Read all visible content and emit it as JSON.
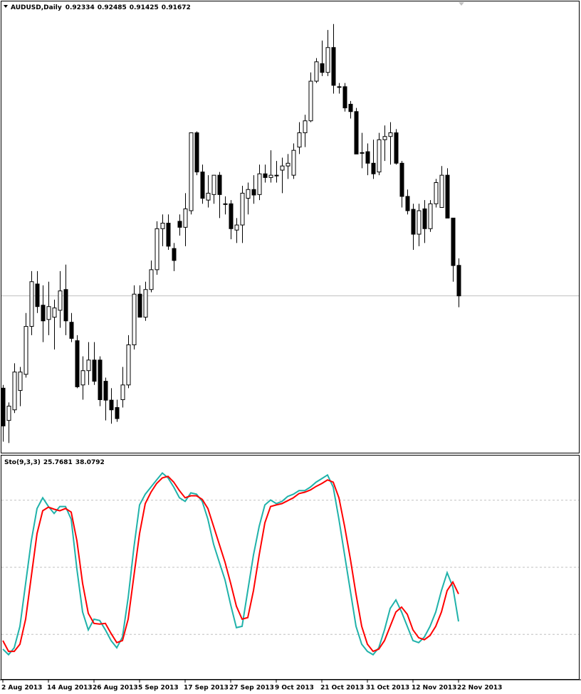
{
  "chart_data": [
    {
      "type": "candlestick",
      "title": "AUDUSD,Daily",
      "categories": [
        "2 Aug 2013",
        null,
        null,
        null,
        null,
        null,
        null,
        null,
        "14 Aug 2013",
        null,
        null,
        null,
        null,
        null,
        null,
        null,
        "26 Aug 2013",
        null,
        null,
        null,
        null,
        null,
        null,
        null,
        "5 Sep 2013",
        null,
        null,
        null,
        null,
        null,
        null,
        null,
        "17 Sep 2013",
        null,
        null,
        null,
        null,
        null,
        null,
        null,
        "27 Sep 2013",
        null,
        null,
        null,
        null,
        null,
        null,
        null,
        "9 Oct 2013",
        null,
        null,
        null,
        null,
        null,
        null,
        null,
        "21 Oct 2013",
        null,
        null,
        null,
        null,
        null,
        null,
        null,
        "31 Oct 2013",
        null,
        null,
        null,
        null,
        null,
        null,
        null,
        "12 Nov 2013",
        null,
        null,
        null,
        null,
        null,
        null,
        null,
        "22 Nov 2013"
      ],
      "open": [
        0.8967,
        0.8897,
        0.892,
        0.8962,
        0.8997,
        0.9101,
        0.9193,
        0.9147,
        0.9116,
        0.9121,
        0.9136,
        0.9181,
        0.911,
        0.907,
        0.8974,
        0.9005,
        0.9028,
        0.9028,
        0.8982,
        0.8941,
        0.8925,
        0.8942,
        0.8974,
        0.9061,
        0.9171,
        0.9121,
        0.9181,
        0.9224,
        0.9313,
        0.9325,
        0.927,
        0.9329,
        0.9316,
        0.9352,
        0.9521,
        0.9436,
        0.9375,
        0.9387,
        0.9429,
        0.9367,
        0.9367,
        0.931,
        0.9321,
        0.9379,
        0.9398,
        0.9387,
        0.9432,
        0.9424,
        0.9429,
        0.944,
        0.9449,
        0.9429,
        0.949,
        0.9521,
        0.9547,
        0.9633,
        0.9671,
        0.9652,
        0.9706,
        0.9621,
        0.9621,
        0.9583,
        0.9567,
        0.9478,
        0.948,
        0.9455,
        0.9436,
        0.9506,
        0.9513,
        0.9521,
        0.9455,
        0.9383,
        0.9355,
        0.9301,
        0.9356,
        0.9313,
        0.9367,
        0.9359,
        0.9429,
        0.9336,
        0.92334
      ],
      "high": [
        0.8974,
        0.8936,
        0.9021,
        0.9013,
        0.913,
        0.9221,
        0.9221,
        0.919,
        0.9198,
        0.9159,
        0.9221,
        0.9235,
        0.913,
        0.9082,
        0.9036,
        0.9067,
        0.9067,
        0.9036,
        0.899,
        0.8967,
        0.8942,
        0.9013,
        0.9082,
        0.919,
        0.919,
        0.9198,
        0.9244,
        0.9329,
        0.9344,
        0.9344,
        0.9282,
        0.9344,
        0.939,
        0.9521,
        0.9524,
        0.9452,
        0.9429,
        0.9429,
        0.9436,
        0.9383,
        0.9375,
        0.9336,
        0.9406,
        0.9413,
        0.9429,
        0.9452,
        0.9452,
        0.9483,
        0.946,
        0.9467,
        0.9475,
        0.9498,
        0.9544,
        0.956,
        0.9652,
        0.9683,
        0.9721,
        0.9744,
        0.9757,
        0.9629,
        0.9629,
        0.959,
        0.9575,
        0.9521,
        0.9498,
        0.9506,
        0.9521,
        0.9537,
        0.9544,
        0.9529,
        0.946,
        0.9398,
        0.9367,
        0.9367,
        0.9375,
        0.9375,
        0.9421,
        0.9449,
        0.9444,
        0.9336,
        0.92485
      ],
      "low": [
        0.8851,
        0.8848,
        0.8913,
        0.8928,
        0.899,
        0.9082,
        0.913,
        0.9067,
        0.9082,
        0.9051,
        0.9098,
        0.9082,
        0.9067,
        0.8967,
        0.8942,
        0.8974,
        0.8974,
        0.8928,
        0.8897,
        0.889,
        0.8894,
        0.8925,
        0.8967,
        0.9051,
        0.9121,
        0.9113,
        0.9175,
        0.9213,
        0.9275,
        0.9267,
        0.9221,
        0.9298,
        0.9275,
        0.9344,
        0.9429,
        0.9367,
        0.9359,
        0.9367,
        0.9336,
        0.9344,
        0.929,
        0.9282,
        0.9282,
        0.9344,
        0.9367,
        0.9375,
        0.9413,
        0.9413,
        0.9413,
        0.939,
        0.9421,
        0.9421,
        0.9475,
        0.949,
        0.9544,
        0.9629,
        0.9644,
        0.9644,
        0.9606,
        0.9606,
        0.9567,
        0.9552,
        0.9475,
        0.9444,
        0.9429,
        0.9421,
        0.9429,
        0.946,
        0.9452,
        0.9452,
        0.9359,
        0.9344,
        0.9267,
        0.9275,
        0.9282,
        0.9306,
        0.9359,
        0.9359,
        0.9336,
        0.9198,
        0.91425
      ],
      "close": [
        0.8885,
        0.8928,
        0.9002,
        0.9002,
        0.9101,
        0.9198,
        0.9144,
        0.9113,
        0.9144,
        0.9141,
        0.9178,
        0.9113,
        0.9075,
        0.897,
        0.9005,
        0.9028,
        0.8982,
        0.8942,
        0.8941,
        0.892,
        0.8901,
        0.8974,
        0.9061,
        0.9171,
        0.9121,
        0.9181,
        0.9224,
        0.9313,
        0.9325,
        0.9275,
        0.9244,
        0.9316,
        0.9356,
        0.9521,
        0.9436,
        0.9379,
        0.939,
        0.9429,
        0.9387,
        0.9367,
        0.9313,
        0.9321,
        0.939,
        0.9398,
        0.9386,
        0.9432,
        0.9424,
        0.9429,
        0.9429,
        0.9449,
        0.9455,
        0.9483,
        0.9521,
        0.9547,
        0.9633,
        0.9675,
        0.9652,
        0.9706,
        0.9624,
        0.9621,
        0.9575,
        0.9567,
        0.9475,
        0.9478,
        0.9455,
        0.9432,
        0.9506,
        0.9513,
        0.9521,
        0.9455,
        0.9383,
        0.9352,
        0.9301,
        0.9352,
        0.9313,
        0.9367,
        0.9413,
        0.9429,
        0.9336,
        0.9233,
        0.91672
      ],
      "ylim": [
        0.8827,
        0.9806
      ],
      "up_color": "#ffffff",
      "down_color": "#000000",
      "price_line_color": "#c0c0c0"
    },
    {
      "type": "line",
      "title": "Sto(9,3,3)",
      "ylim": [
        0,
        100
      ],
      "levels": [
        20,
        50,
        80
      ],
      "level_color": "#c0c0c0",
      "series": [
        {
          "color": "#20b2aa",
          "values": [
            13.4,
            10.9,
            14.0,
            23.6,
            42.8,
            61.9,
            76.3,
            81.1,
            77.2,
            74.1,
            77.2,
            77.2,
            71.5,
            49.2,
            30.0,
            22.0,
            26.8,
            26.2,
            22.0,
            17.2,
            14.0,
            18.8,
            36.4,
            58.7,
            77.9,
            82.7,
            85.9,
            89.1,
            92.2,
            90.0,
            85.9,
            81.1,
            79.5,
            83.3,
            82.7,
            79.5,
            71.5,
            60.3,
            52.3,
            44.4,
            33.2,
            23.0,
            23.6,
            39.6,
            55.5,
            68.3,
            77.9,
            80.1,
            78.5,
            79.5,
            81.7,
            82.7,
            84.3,
            84.3,
            85.9,
            88.1,
            89.7,
            91.3,
            85.9,
            71.5,
            55.5,
            39.6,
            23.6,
            15.6,
            12.4,
            10.9,
            14.0,
            22.0,
            31.6,
            35.4,
            30.0,
            23.6,
            17.2,
            16.3,
            18.8,
            23.6,
            30.0,
            39.6,
            47.6,
            41.2,
            25.7681
          ]
        },
        {
          "color": "#ff0000",
          "values": [
            17.2,
            12.4,
            12.4,
            15.6,
            26.8,
            46.0,
            65.1,
            75.3,
            76.9,
            76.0,
            75.3,
            76.3,
            74.7,
            61.9,
            42.8,
            29.4,
            24.9,
            24.6,
            24.9,
            20.4,
            16.3,
            17.2,
            26.8,
            46.0,
            65.1,
            78.5,
            83.6,
            87.5,
            90.0,
            90.7,
            88.1,
            84.3,
            81.1,
            82.0,
            82.0,
            80.4,
            76.3,
            68.3,
            60.3,
            52.3,
            42.8,
            32.6,
            26.8,
            27.5,
            39.6,
            55.5,
            69.9,
            77.2,
            77.9,
            78.5,
            79.8,
            81.1,
            83.0,
            83.6,
            84.6,
            86.2,
            87.5,
            89.1,
            88.1,
            81.1,
            68.3,
            53.9,
            38.0,
            23.6,
            15.6,
            12.4,
            13.4,
            17.2,
            23.6,
            30.0,
            32.2,
            29.0,
            22.0,
            18.5,
            17.6,
            19.5,
            23.6,
            30.0,
            39.6,
            43.4,
            38.0792
          ]
        }
      ]
    }
  ]
}
